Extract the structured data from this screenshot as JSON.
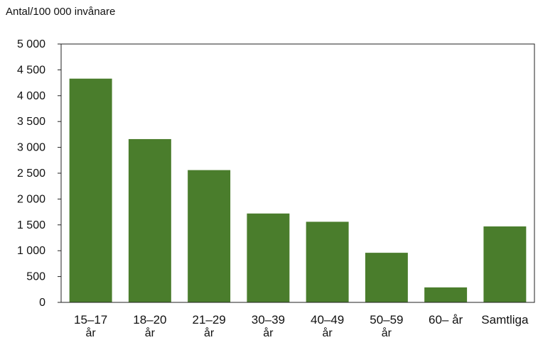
{
  "chart_data": {
    "type": "bar",
    "ylabel": "Antal/100 000 invånare",
    "categories": [
      {
        "line1": "15–17",
        "line2": "år"
      },
      {
        "line1": "18–20",
        "line2": "år"
      },
      {
        "line1": "21–29",
        "line2": "år"
      },
      {
        "line1": "30–39",
        "line2": "år"
      },
      {
        "line1": "40–49",
        "line2": "år"
      },
      {
        "line1": "50–59",
        "line2": "år"
      },
      {
        "line1": "60– år",
        "line2": ""
      },
      {
        "line1": "Samtliga",
        "line2": ""
      }
    ],
    "values": [
      4330,
      3160,
      2560,
      1720,
      1560,
      960,
      290,
      1470
    ],
    "ylim": [
      0,
      5000
    ],
    "yticks": [
      0,
      500,
      1000,
      1500,
      2000,
      2500,
      3000,
      3500,
      4000,
      4500,
      5000
    ],
    "ytick_labels": [
      "0",
      "500",
      "1 000",
      "1 500",
      "2 000",
      "2 500",
      "3 000",
      "3 500",
      "4 000",
      "4 500",
      "5 000"
    ],
    "bar_color": "#4a7d2c",
    "grid": false
  }
}
